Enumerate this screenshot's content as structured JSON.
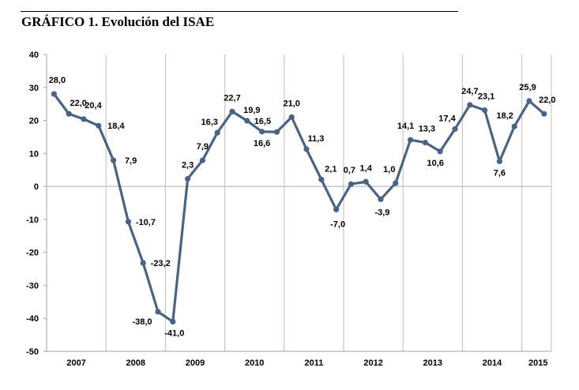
{
  "header": {
    "title": "GRÁFICO 1. Evolución del ISAE"
  },
  "chart_data": {
    "type": "line",
    "title": "GRÁFICO 1. Evolución del ISAE",
    "xlabel": "",
    "ylabel": "",
    "ylim": [
      -50,
      40
    ],
    "yticks": [
      "40",
      "30",
      "20",
      "10",
      "0",
      "-10",
      "-20",
      "-30",
      "-40",
      "-50"
    ],
    "ytick_values": [
      40,
      30,
      20,
      10,
      0,
      -10,
      -20,
      -30,
      -40,
      -50
    ],
    "categories": [
      "2007",
      "2008",
      "2009",
      "2010",
      "2011",
      "2012",
      "2013",
      "2014",
      "2015"
    ],
    "quarters_per_category": [
      4,
      4,
      4,
      4,
      4,
      4,
      4,
      4,
      2
    ],
    "grid": true,
    "line_color": "#4a6384",
    "series": [
      {
        "name": "ISAE",
        "values": [
          28.0,
          22.0,
          20.4,
          18.4,
          7.9,
          -10.7,
          -23.2,
          -38.0,
          -41.0,
          2.3,
          7.9,
          16.3,
          22.7,
          19.9,
          16.6,
          16.5,
          21.0,
          11.3,
          2.1,
          -7.0,
          0.7,
          1.4,
          -3.9,
          1.0,
          14.1,
          13.3,
          10.6,
          17.4,
          24.7,
          23.1,
          7.6,
          18.2,
          25.9,
          22.0
        ],
        "labels": [
          "28,0",
          "22,0",
          "20,4",
          "18,4",
          "7,9",
          "-10,7",
          "-23,2",
          "-38,0",
          "-41,0",
          "2,3",
          "7,9",
          "16,3",
          "22,7",
          "19,9",
          "16,6",
          "16,5",
          "21,0",
          "11,3",
          "2,1",
          "-7,0",
          "0,7",
          "1,4",
          "-3,9",
          "1,0",
          "14,1",
          "13,3",
          "10,6",
          "17,4",
          "24,7",
          "23,1",
          "7,6",
          "18,2",
          "25,9",
          "22,0"
        ]
      }
    ]
  }
}
